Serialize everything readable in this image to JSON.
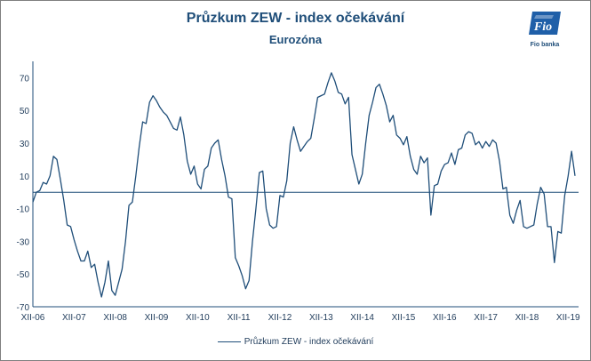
{
  "header": {
    "title": "Průzkum ZEW - index očekávání",
    "subtitle": "Eurozóna",
    "logo_text": "Fio",
    "logo_caption": "Fio banka"
  },
  "colors": {
    "series": "#1f4e79",
    "axis": "#1f4e79",
    "text": "#1f3b5a"
  },
  "chart_data": {
    "type": "line",
    "title": "Průzkum ZEW - index očekávání",
    "subtitle": "Eurozóna",
    "x_ticks": [
      "XII-06",
      "XII-07",
      "XII-08",
      "XII-09",
      "XII-10",
      "XII-11",
      "XII-12",
      "XII-13",
      "XII-14",
      "XII-15",
      "XII-16",
      "XII-17",
      "XII-18",
      "XII-19"
    ],
    "y_ticks": [
      70,
      50,
      30,
      10,
      -10,
      -30,
      -50,
      -70
    ],
    "ylim": [
      -70,
      80
    ],
    "grid": false,
    "legend": "bottom",
    "series": [
      {
        "name": "Průzkum ZEW - index očekávání",
        "start": "2006-12",
        "values": [
          -6,
          0,
          1,
          6,
          5,
          10,
          22,
          20,
          8,
          -5,
          -20,
          -21,
          -29,
          -36,
          -42,
          -42,
          -36,
          -46,
          -44,
          -55,
          -64,
          -55,
          -42,
          -60,
          -63,
          -55,
          -47,
          -30,
          -8,
          -6,
          10,
          28,
          43,
          42,
          55,
          59,
          56,
          52,
          49,
          47,
          43,
          39,
          38,
          46,
          35,
          19,
          11,
          16,
          5,
          2,
          14,
          16,
          27,
          30,
          32,
          20,
          10,
          -3,
          -4,
          -40,
          -45,
          -51,
          -59,
          -54,
          -30,
          -10,
          12,
          13,
          -10,
          -20,
          -22,
          -21,
          -2,
          -3,
          7,
          30,
          40,
          32,
          25,
          28,
          31,
          33,
          45,
          58,
          59,
          60,
          67,
          73,
          68,
          61,
          60,
          54,
          58,
          23,
          14,
          5,
          11,
          30,
          47,
          55,
          64,
          66,
          60,
          53,
          43,
          47,
          35,
          33,
          29,
          34,
          22,
          14,
          11,
          22,
          18,
          21,
          -14,
          4,
          5,
          13,
          17,
          18,
          24,
          17,
          26,
          27,
          35,
          37,
          36,
          29,
          31,
          27,
          31,
          28,
          32,
          30,
          19,
          2,
          3,
          -14,
          -19,
          -11,
          -5,
          -21,
          -22,
          -21,
          -20,
          -7,
          3,
          -1,
          -21,
          -21,
          -43,
          -24,
          -25,
          -2,
          10,
          25,
          10
        ]
      }
    ]
  },
  "legend": {
    "label": "Průzkum ZEW - index očekávání"
  }
}
